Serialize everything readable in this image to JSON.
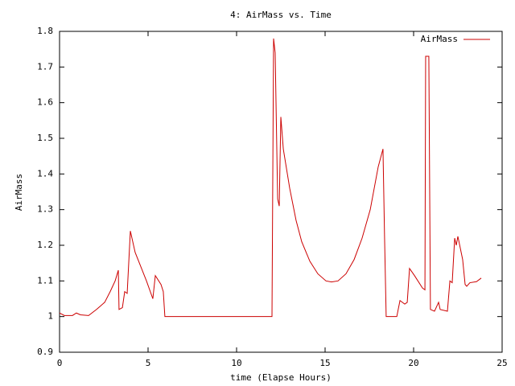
{
  "chart_data": {
    "type": "line",
    "title": "4: AirMass vs. Time",
    "x_label": "time (Elapse Hours)",
    "y_label": "AirMass",
    "x": [
      0,
      0.27,
      0.73,
      0.95,
      1.18,
      1.64,
      2.09,
      2.55,
      2.86,
      3.14,
      3.32,
      3.36,
      3.55,
      3.68,
      3.82,
      4.0,
      4.27,
      4.59,
      4.91,
      5.27,
      5.41,
      5.73,
      5.86,
      5.95,
      12.0,
      12.09,
      12.18,
      12.32,
      12.41,
      12.5,
      12.64,
      13.0,
      13.36,
      13.68,
      14.14,
      14.59,
      15.05,
      15.36,
      15.73,
      16.18,
      16.64,
      17.09,
      17.55,
      18.0,
      18.27,
      18.36,
      18.45,
      19.05,
      19.23,
      19.5,
      19.64,
      19.77,
      20.05,
      20.5,
      20.64,
      20.68,
      20.86,
      20.95,
      21.18,
      21.41,
      21.5,
      21.91,
      22.05,
      22.18,
      22.32,
      22.41,
      22.5,
      22.77,
      22.91,
      23.0,
      23.18,
      23.55,
      23.82
    ],
    "series": [
      {
        "name": "AirMass",
        "color": "#cc0000",
        "values": [
          1.01,
          1.003,
          1.003,
          1.01,
          1.005,
          1.003,
          1.02,
          1.04,
          1.07,
          1.1,
          1.13,
          1.02,
          1.025,
          1.07,
          1.065,
          1.24,
          1.18,
          1.14,
          1.1,
          1.05,
          1.115,
          1.09,
          1.07,
          1.0,
          1.0,
          1.78,
          1.74,
          1.33,
          1.31,
          1.56,
          1.47,
          1.36,
          1.27,
          1.21,
          1.155,
          1.12,
          1.1,
          1.097,
          1.1,
          1.12,
          1.16,
          1.22,
          1.3,
          1.42,
          1.47,
          1.22,
          1.0,
          1.0,
          1.045,
          1.035,
          1.04,
          1.135,
          1.115,
          1.08,
          1.075,
          1.73,
          1.73,
          1.02,
          1.015,
          1.04,
          1.02,
          1.015,
          1.1,
          1.095,
          1.22,
          1.2,
          1.225,
          1.16,
          1.09,
          1.085,
          1.095,
          1.098,
          1.108
        ]
      }
    ],
    "xlim": [
      0,
      25
    ],
    "xticks": [
      0,
      5,
      10,
      15,
      20,
      25
    ],
    "ylim": [
      0.9,
      1.8
    ],
    "yticks": [
      0.9,
      1,
      1.1,
      1.2,
      1.3,
      1.4,
      1.5,
      1.6,
      1.7,
      1.8
    ],
    "legend": "top-right"
  }
}
